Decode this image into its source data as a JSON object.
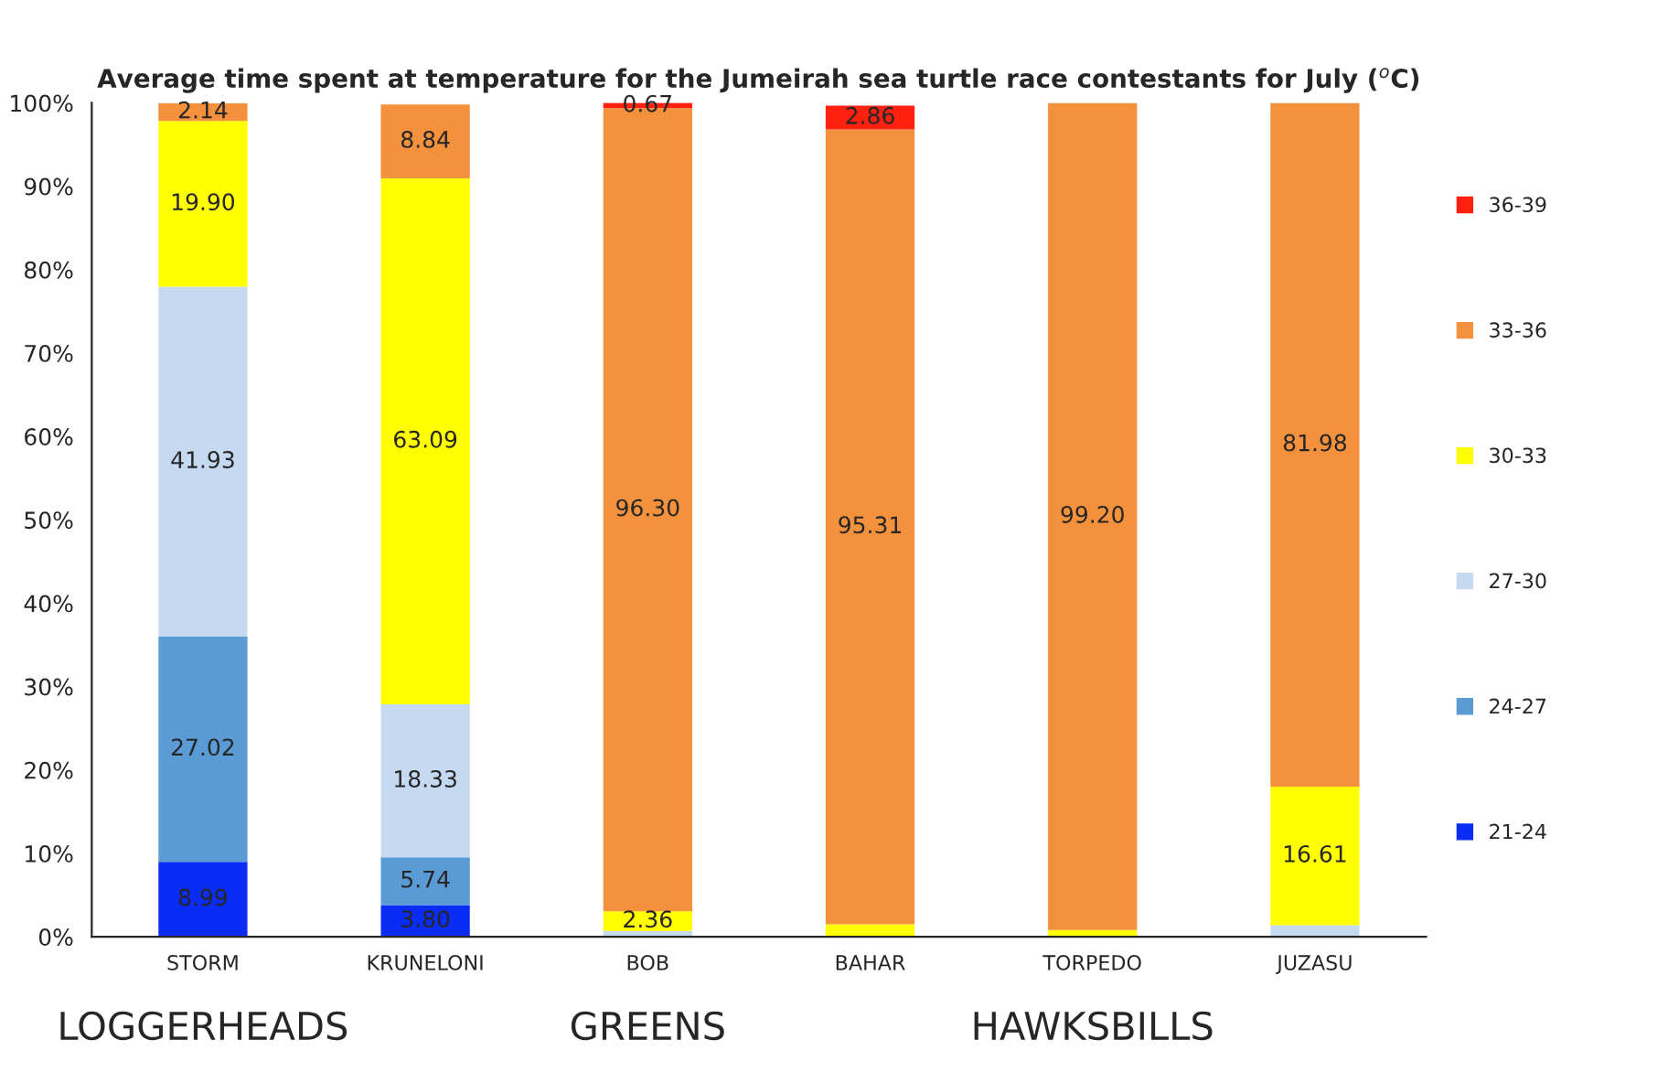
{
  "chart_data": {
    "type": "bar",
    "stacked": true,
    "title": "Average time spent at temperature for the Jumeirah sea turtle race contestants for July ($^{o}$C)",
    "categories": [
      "STORM",
      "KRUNELONI",
      "BOB",
      "BAHAR",
      "TORPEDO",
      "JUZASU"
    ],
    "series": [
      {
        "name": "21-24",
        "color": "#0a2cf5",
        "values": [
          8.99,
          3.8,
          0,
          0,
          0,
          0
        ],
        "value_labels": [
          "8.99",
          "3.80",
          null,
          null,
          null,
          null
        ]
      },
      {
        "name": "24-27",
        "color": "#5b9bd5",
        "values": [
          27.02,
          5.74,
          0,
          0,
          0,
          0
        ],
        "value_labels": [
          "27.02",
          "5.74",
          null,
          null,
          null,
          null
        ]
      },
      {
        "name": "27-30",
        "color": "#c5d9f0",
        "values": [
          41.93,
          18.33,
          0.7,
          null,
          0,
          1.4
        ],
        "value_labels": [
          "41.93",
          "18.33",
          null,
          null,
          null,
          null
        ]
      },
      {
        "name": "30-33",
        "color": "#ffff00",
        "values": [
          19.9,
          63.09,
          2.36,
          1.5,
          0.8,
          16.61
        ],
        "value_labels": [
          "19.90",
          "63.09",
          "2.36",
          null,
          null,
          "16.61"
        ]
      },
      {
        "name": "33-36",
        "color": "#f4913c",
        "values": [
          2.14,
          8.84,
          96.3,
          95.31,
          99.2,
          81.98
        ],
        "value_labels": [
          "2.14",
          "8.84",
          "96.30",
          "95.31",
          "99.20",
          "81.98"
        ]
      },
      {
        "name": "36-39",
        "color": "#ff2010",
        "values": [
          0,
          0,
          0.67,
          2.86,
          0,
          0
        ],
        "value_labels": [
          null,
          null,
          "0.67",
          "2.86",
          null,
          null
        ]
      }
    ],
    "ylim": [
      0,
      100
    ],
    "yticks": [
      {
        "value": 0,
        "label": "0%"
      },
      {
        "value": 10,
        "label": "10%"
      },
      {
        "value": 20,
        "label": "20%"
      },
      {
        "value": 30,
        "label": "30%"
      },
      {
        "value": 40,
        "label": "40%"
      },
      {
        "value": 50,
        "label": "50%"
      },
      {
        "value": 60,
        "label": "60%"
      },
      {
        "value": 70,
        "label": "70%"
      },
      {
        "value": 80,
        "label": "80%"
      },
      {
        "value": 90,
        "label": "90%"
      },
      {
        "value": 100,
        "label": "100%"
      }
    ],
    "legend": "right",
    "annotations": [
      "LOGGERHEADS",
      "GREENS",
      "HAWKSBILLS"
    ]
  }
}
